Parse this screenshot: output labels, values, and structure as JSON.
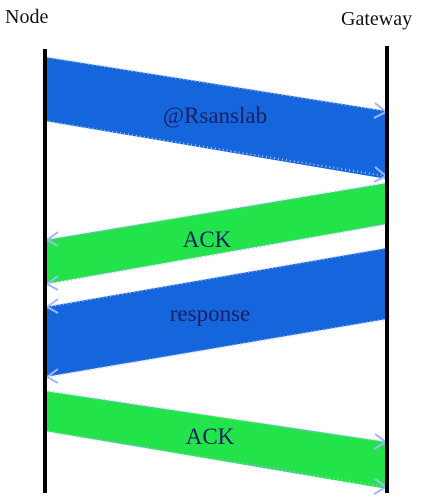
{
  "diagram": {
    "participants": {
      "node": "Node",
      "gateway": "Gateway"
    },
    "messages": [
      {
        "label": "@Rsanslab",
        "from": "Node",
        "to": "Gateway",
        "color": "#1565dc"
      },
      {
        "label": "ACK",
        "from": "Gateway",
        "to": "Node",
        "color": "#22e34a"
      },
      {
        "label": "response",
        "from": "Gateway",
        "to": "Node",
        "color": "#1565dc"
      },
      {
        "label": "ACK",
        "from": "Node",
        "to": "Gateway",
        "color": "#22e34a"
      }
    ],
    "colors": {
      "lifeline": "#000000",
      "band_blue": "#1565dc",
      "band_green": "#22e34a",
      "arrow": "#9fb8ff",
      "text": "#1b1f63"
    }
  }
}
